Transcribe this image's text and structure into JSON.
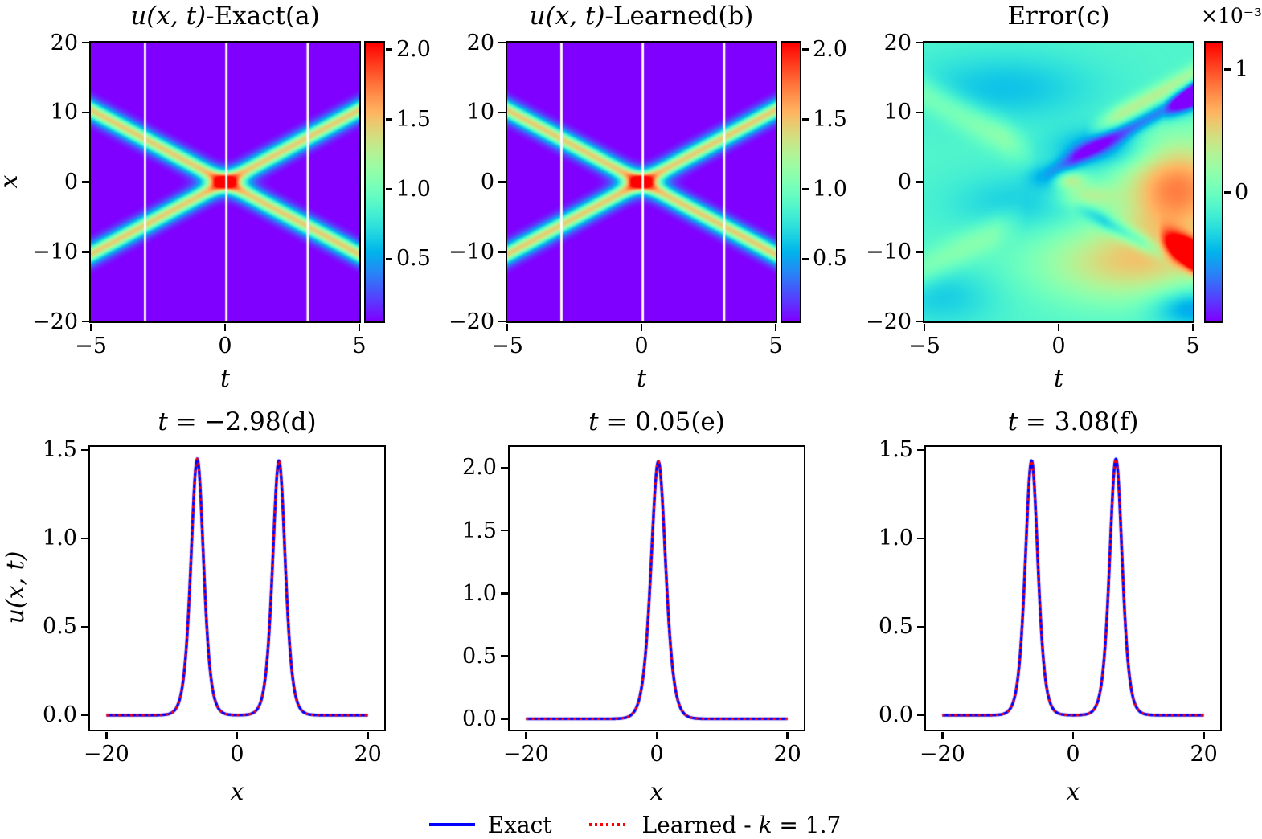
{
  "figure": {
    "background": "#ffffff",
    "frame_color": "#000000",
    "colormap": "rainbow",
    "slice_line_color": "#ffffff"
  },
  "chart_data": {
    "type": "heatmap",
    "description": "Two-soliton solution: exact vs learned field u(x,t), pointwise error, and three time-slice profiles",
    "panels": [
      {
        "id": "a",
        "type": "soliton-heatmap",
        "title": "u(x, t)-Exact(a)",
        "title_parts": [
          {
            "text": "u(x, t)",
            "italic": true
          },
          {
            "text": "-Exact(a)",
            "italic": false
          }
        ],
        "xlabel": "t",
        "ylabel": "x",
        "xlim": [
          -5,
          5
        ],
        "ylim": [
          -20,
          20
        ],
        "xticks": [
          "−5",
          "0",
          "5"
        ],
        "xtick_values": [
          -5,
          0,
          5
        ],
        "yticks": [
          "20",
          "10",
          "0",
          "−10",
          "−20"
        ],
        "ytick_values": [
          20,
          10,
          0,
          -10,
          -20
        ],
        "colorbar": {
          "vmin": 0.05,
          "vmax": 2.05,
          "ticks": [
            "2.0",
            "1.5",
            "1.0",
            "0.5"
          ],
          "tick_values": [
            2.0,
            1.5,
            1.0,
            0.5
          ]
        },
        "solitons": [
          {
            "amplitude": 1.45,
            "speed": -2.07,
            "width": 1.3
          },
          {
            "amplitude": 1.45,
            "speed": 2.07,
            "width": 1.3
          }
        ],
        "slice_lines": [
          -2.98,
          0.05,
          3.08
        ]
      },
      {
        "id": "b",
        "type": "soliton-heatmap",
        "title": "u(x, t)-Learned(b)",
        "title_parts": [
          {
            "text": "u(x, t)",
            "italic": true
          },
          {
            "text": "-Learned(b)",
            "italic": false
          }
        ],
        "xlabel": "t",
        "ylabel": null,
        "xlim": [
          -5,
          5
        ],
        "ylim": [
          -20,
          20
        ],
        "xticks": [
          "−5",
          "0",
          "5"
        ],
        "xtick_values": [
          -5,
          0,
          5
        ],
        "yticks": [
          "20",
          "10",
          "0",
          "−10",
          "−20"
        ],
        "ytick_values": [
          20,
          10,
          0,
          -10,
          -20
        ],
        "colorbar": {
          "vmin": 0.05,
          "vmax": 2.05,
          "ticks": [
            "2.0",
            "1.5",
            "1.0",
            "0.5"
          ],
          "tick_values": [
            2.0,
            1.5,
            1.0,
            0.5
          ]
        },
        "solitons": [
          {
            "amplitude": 1.45,
            "speed": -2.07,
            "width": 1.3
          },
          {
            "amplitude": 1.45,
            "speed": 2.07,
            "width": 1.3
          }
        ],
        "slice_lines": [
          -2.98,
          0.05,
          3.08
        ]
      },
      {
        "id": "c",
        "type": "error-heatmap",
        "title": "Error(c)",
        "title_parts": [
          {
            "text": "Error(c)",
            "italic": false
          }
        ],
        "xlabel": "t",
        "ylabel": null,
        "xlim": [
          -5,
          5
        ],
        "ylim": [
          -20,
          20
        ],
        "xticks": [
          "−5",
          "0",
          "5"
        ],
        "xtick_values": [
          -5,
          0,
          5
        ],
        "yticks": [
          "20",
          "10",
          "0",
          "−10",
          "−20"
        ],
        "ytick_values": [
          20,
          10,
          0,
          -10,
          -20
        ],
        "colorbar": {
          "vmin": -1.05,
          "vmax": 1.22,
          "scale_label": "×10⁻³",
          "ticks": [
            "1",
            "0"
          ],
          "tick_values": [
            1,
            0
          ]
        },
        "base": -0.12,
        "blobs": [
          {
            "t": 4.4,
            "x": -1.0,
            "st": 1.5,
            "sx": 5.0,
            "amp": 0.95
          },
          {
            "t": 2.6,
            "x": -11.5,
            "st": 2.3,
            "sx": 4.0,
            "amp": 0.65
          },
          {
            "t": -2.0,
            "x": 13.5,
            "st": 2.4,
            "sx": 3.5,
            "amp": -0.3
          },
          {
            "t": -1.5,
            "x": -3.0,
            "st": 1.8,
            "sx": 3.0,
            "amp": -0.25
          },
          {
            "t": -4.3,
            "x": -16.5,
            "st": 1.4,
            "sx": 3.0,
            "amp": -0.25
          },
          {
            "t": 4.9,
            "x": -18.0,
            "st": 1.0,
            "sx": 2.0,
            "amp": -0.5
          },
          {
            "t": 1.6,
            "x": 4.8,
            "st": 1.2,
            "sx": 2.0,
            "amp": -0.5
          },
          {
            "t": 0.35,
            "x": 0.3,
            "st": 0.45,
            "sx": 0.9,
            "amp": 0.55
          },
          {
            "t": 1.0,
            "x": -2.0,
            "st": 0.7,
            "sx": 1.2,
            "amp": 0.4
          },
          {
            "t": -0.4,
            "x": 0.8,
            "st": 0.5,
            "sx": 1.2,
            "amp": -0.35
          }
        ],
        "ridges": [
          {
            "slope": -2.07,
            "intercept": -0.2,
            "sigma": 1.4,
            "amp": 2.4,
            "t0": 3.7,
            "t1": 7.0
          },
          {
            "slope": 2.07,
            "intercept": 2.1,
            "sigma": 1.3,
            "amp": -1.5,
            "t0": 3.9,
            "t1": 7.0
          },
          {
            "slope": 2.07,
            "intercept": 2.2,
            "sigma": 1.0,
            "amp": -0.62,
            "t0": -0.6,
            "t1": 7.0
          },
          {
            "slope": 2.07,
            "intercept": 4.9,
            "sigma": 1.1,
            "amp": 0.45,
            "t0": 1.0,
            "t1": 7.0
          },
          {
            "slope": -2.07,
            "intercept": -2.2,
            "sigma": 0.95,
            "amp": -0.5,
            "t0": 0.5,
            "t1": 4.3
          },
          {
            "slope": -2.07,
            "intercept": 2.2,
            "sigma": 1.8,
            "amp": 0.3,
            "t0": -7.0,
            "t1": -0.8
          },
          {
            "slope": 2.07,
            "intercept": -2.2,
            "sigma": 1.8,
            "amp": 0.25,
            "t0": -7.0,
            "t1": -1.2
          }
        ]
      },
      {
        "id": "d",
        "type": "line",
        "title": "t = −2.98(d)",
        "title_parts": [
          {
            "text": "t",
            "italic": true
          },
          {
            "text": " = −2.98(d)",
            "italic": false
          }
        ],
        "xlabel": "x",
        "ylabel": "u(x, t)",
        "xlim": [
          -22.5,
          22.5
        ],
        "ylim": [
          -0.082,
          1.518
        ],
        "xticks": [
          "−20",
          "0",
          "20"
        ],
        "xtick_values": [
          -20,
          0,
          20
        ],
        "yticks": [
          "0.0",
          "0.5",
          "1.0",
          "1.5"
        ],
        "ytick_values": [
          0.0,
          0.5,
          1.0,
          1.5
        ],
        "series_domain": [
          -20,
          20
        ],
        "peaks": [
          {
            "x": -6.1,
            "amplitude": 1.45,
            "width": 1.3
          },
          {
            "x": 6.4,
            "amplitude": 1.44,
            "width": 1.3
          }
        ]
      },
      {
        "id": "e",
        "type": "line",
        "title": "t = 0.05(e)",
        "title_parts": [
          {
            "text": "t",
            "italic": true
          },
          {
            "text": " = 0.05(e)",
            "italic": false
          }
        ],
        "xlabel": "x",
        "ylabel": null,
        "xlim": [
          -22.5,
          22.5
        ],
        "ylim": [
          -0.086,
          2.166
        ],
        "xticks": [
          "−20",
          "0",
          "20"
        ],
        "xtick_values": [
          -20,
          0,
          20
        ],
        "yticks": [
          "0.0",
          "0.5",
          "1.0",
          "1.5",
          "2.0"
        ],
        "ytick_values": [
          0.0,
          0.5,
          1.0,
          1.5,
          2.0
        ],
        "series_domain": [
          -20,
          20
        ],
        "peaks": [
          {
            "x": 0.25,
            "amplitude": 2.05,
            "width": 1.5
          }
        ]
      },
      {
        "id": "f",
        "type": "line",
        "title": "t = 3.08(f)",
        "title_parts": [
          {
            "text": "t",
            "italic": true
          },
          {
            "text": " = 3.08(f)",
            "italic": false
          }
        ],
        "xlabel": "x",
        "ylabel": null,
        "xlim": [
          -22.5,
          22.5
        ],
        "ylim": [
          -0.082,
          1.518
        ],
        "xticks": [
          "−20",
          "0",
          "20"
        ],
        "xtick_values": [
          -20,
          0,
          20
        ],
        "yticks": [
          "0.0",
          "0.5",
          "1.0",
          "1.5"
        ],
        "ytick_values": [
          0.0,
          0.5,
          1.0,
          1.5
        ],
        "series_domain": [
          -20,
          20
        ],
        "peaks": [
          {
            "x": -6.35,
            "amplitude": 1.44,
            "width": 1.3
          },
          {
            "x": 6.55,
            "amplitude": 1.45,
            "width": 1.3
          }
        ]
      }
    ],
    "legend": {
      "entries": [
        {
          "label": "Exact",
          "label_parts": [
            {
              "text": "Exact",
              "italic": false
            }
          ],
          "style": "solid",
          "color": "#0000ff"
        },
        {
          "label": "Learned - k = 1.7",
          "label_parts": [
            {
              "text": "Learned - ",
              "italic": false
            },
            {
              "text": "k",
              "italic": true
            },
            {
              "text": " = 1.7",
              "italic": false
            }
          ],
          "style": "dotted",
          "color": "#ff0000"
        }
      ]
    }
  }
}
